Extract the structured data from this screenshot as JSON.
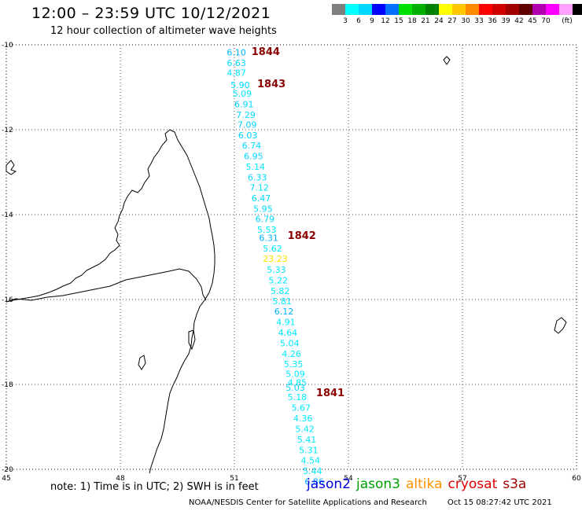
{
  "header": {
    "title": "12:00 – 23:59 UTC 10/12/2021",
    "subtitle": "12 hour collection of altimeter wave heights"
  },
  "colorbar": {
    "colors": [
      "#7f7f7f",
      "#00ffff",
      "#00d8ff",
      "#0000ff",
      "#0070ff",
      "#00e000",
      "#00b000",
      "#008000",
      "#ffff00",
      "#ffc800",
      "#ff8c00",
      "#ff0000",
      "#d00000",
      "#a00000",
      "#600000",
      "#b000b0",
      "#ff00ff",
      "#ffa0ff",
      "#000000"
    ],
    "labels": [
      "3",
      "6",
      "9",
      "12",
      "15",
      "18",
      "21",
      "24",
      "27",
      "30",
      "33",
      "36",
      "39",
      "42",
      "45",
      "70",
      "(ft)"
    ]
  },
  "map": {
    "lon_ticks": [
      "45",
      "48",
      "51",
      "54",
      "57",
      "60"
    ],
    "lat_ticks": [
      "-10",
      "-12",
      "-14",
      "-16",
      "-18",
      "-20"
    ],
    "pass_labels": [
      {
        "text": "1844",
        "lat": -10.17,
        "lon": 51.45
      },
      {
        "text": "1843",
        "lat": -10.93,
        "lon": 51.6
      },
      {
        "text": "1842",
        "lat": -14.5,
        "lon": 52.4
      },
      {
        "text": "1841",
        "lat": -18.2,
        "lon": 53.15
      }
    ],
    "swh": [
      {
        "v": "6.10",
        "lat": -10.18,
        "lon": 50.8,
        "c": "#00b0ff"
      },
      {
        "v": "6.63",
        "lat": -10.43,
        "lon": 50.8,
        "c": "#00d8ff"
      },
      {
        "v": "4.87",
        "lat": -10.66,
        "lon": 50.8,
        "c": "#00e8ff"
      },
      {
        "v": "5.90",
        "lat": -10.94,
        "lon": 50.9,
        "c": "#00d8ff"
      },
      {
        "v": "5.09",
        "lat": -11.15,
        "lon": 50.95,
        "c": "#00e8ff"
      },
      {
        "v": "6.91",
        "lat": -11.4,
        "lon": 51.0,
        "c": "#00d8ff"
      },
      {
        "v": "7.29",
        "lat": -11.65,
        "lon": 51.05,
        "c": "#00d8ff"
      },
      {
        "v": "7.09",
        "lat": -11.88,
        "lon": 51.08,
        "c": "#00d8ff"
      },
      {
        "v": "6.03",
        "lat": -12.13,
        "lon": 51.1,
        "c": "#00d8ff"
      },
      {
        "v": "6.74",
        "lat": -12.37,
        "lon": 51.2,
        "c": "#00d8ff"
      },
      {
        "v": "6.95",
        "lat": -12.62,
        "lon": 51.25,
        "c": "#00d8ff"
      },
      {
        "v": "5.14",
        "lat": -12.87,
        "lon": 51.3,
        "c": "#00e8ff"
      },
      {
        "v": "6.33",
        "lat": -13.12,
        "lon": 51.35,
        "c": "#00d8ff"
      },
      {
        "v": "7.12",
        "lat": -13.36,
        "lon": 51.4,
        "c": "#00d8ff"
      },
      {
        "v": "6.47",
        "lat": -13.61,
        "lon": 51.45,
        "c": "#00d8ff"
      },
      {
        "v": "5.95",
        "lat": -13.86,
        "lon": 51.5,
        "c": "#00d8ff"
      },
      {
        "v": "6.79",
        "lat": -14.1,
        "lon": 51.55,
        "c": "#00d8ff"
      },
      {
        "v": "5.53",
        "lat": -14.35,
        "lon": 51.6,
        "c": "#00e8ff"
      },
      {
        "v": "6.31",
        "lat": -14.55,
        "lon": 51.65,
        "c": "#00b0ff"
      },
      {
        "v": "5.62",
        "lat": -14.8,
        "lon": 51.75,
        "c": "#00e8ff"
      },
      {
        "v": "23.23",
        "lat": -15.04,
        "lon": 51.75,
        "c": "#ffe000"
      },
      {
        "v": "5.33",
        "lat": -15.3,
        "lon": 51.85,
        "c": "#00e8ff"
      },
      {
        "v": "5.22",
        "lat": -15.55,
        "lon": 51.9,
        "c": "#00e8ff"
      },
      {
        "v": "5.82",
        "lat": -15.8,
        "lon": 51.95,
        "c": "#00e8ff"
      },
      {
        "v": "5.81",
        "lat": -16.04,
        "lon": 52.0,
        "c": "#00e8ff"
      },
      {
        "v": "6.12",
        "lat": -16.28,
        "lon": 52.05,
        "c": "#00b0ff"
      },
      {
        "v": "4.91",
        "lat": -16.53,
        "lon": 52.1,
        "c": "#00e8ff"
      },
      {
        "v": "4.64",
        "lat": -16.78,
        "lon": 52.15,
        "c": "#00e8ff"
      },
      {
        "v": "5.04",
        "lat": -17.03,
        "lon": 52.2,
        "c": "#00e8ff"
      },
      {
        "v": "4.26",
        "lat": -17.28,
        "lon": 52.25,
        "c": "#00e8ff"
      },
      {
        "v": "5.35",
        "lat": -17.52,
        "lon": 52.3,
        "c": "#00e8ff"
      },
      {
        "v": "5.09",
        "lat": -17.75,
        "lon": 52.35,
        "c": "#00e8ff"
      },
      {
        "v": "4.85",
        "lat": -17.95,
        "lon": 52.4,
        "c": "#00e8ff"
      },
      {
        "v": "5.03",
        "lat": -18.07,
        "lon": 52.35,
        "c": "#00d8ff"
      },
      {
        "v": "5.18",
        "lat": -18.3,
        "lon": 52.4,
        "c": "#00e8ff"
      },
      {
        "v": "5.67",
        "lat": -18.55,
        "lon": 52.5,
        "c": "#00e8ff"
      },
      {
        "v": "4.36",
        "lat": -18.8,
        "lon": 52.55,
        "c": "#00e8ff"
      },
      {
        "v": "5.42",
        "lat": -19.05,
        "lon": 52.6,
        "c": "#00e8ff"
      },
      {
        "v": "5.41",
        "lat": -19.3,
        "lon": 52.65,
        "c": "#00e8ff"
      },
      {
        "v": "5.31",
        "lat": -19.55,
        "lon": 52.7,
        "c": "#00e8ff"
      },
      {
        "v": "4.54",
        "lat": -19.79,
        "lon": 52.75,
        "c": "#00e8ff"
      },
      {
        "v": "5.44",
        "lat": -20.04,
        "lon": 52.8,
        "c": "#00e8ff"
      },
      {
        "v": "6.86",
        "lat": -20.29,
        "lon": 52.85,
        "c": "#00b0ff"
      }
    ]
  },
  "note": "note:  1) Time is in UTC;  2) SWH is in feet",
  "legend": [
    {
      "name": "jason2",
      "color": "#0000e0"
    },
    {
      "name": "jason3",
      "color": "#00a000"
    },
    {
      "name": "altika",
      "color": "#ff9000"
    },
    {
      "name": "cryosat",
      "color": "#e00000"
    },
    {
      "name": "s3a",
      "color": "#a00000"
    }
  ],
  "footer": {
    "credit": "NOAA/NESDIS Center for Satellite Applications and Research",
    "timestamp": "Oct 15 08:27:42 UTC 2021"
  }
}
